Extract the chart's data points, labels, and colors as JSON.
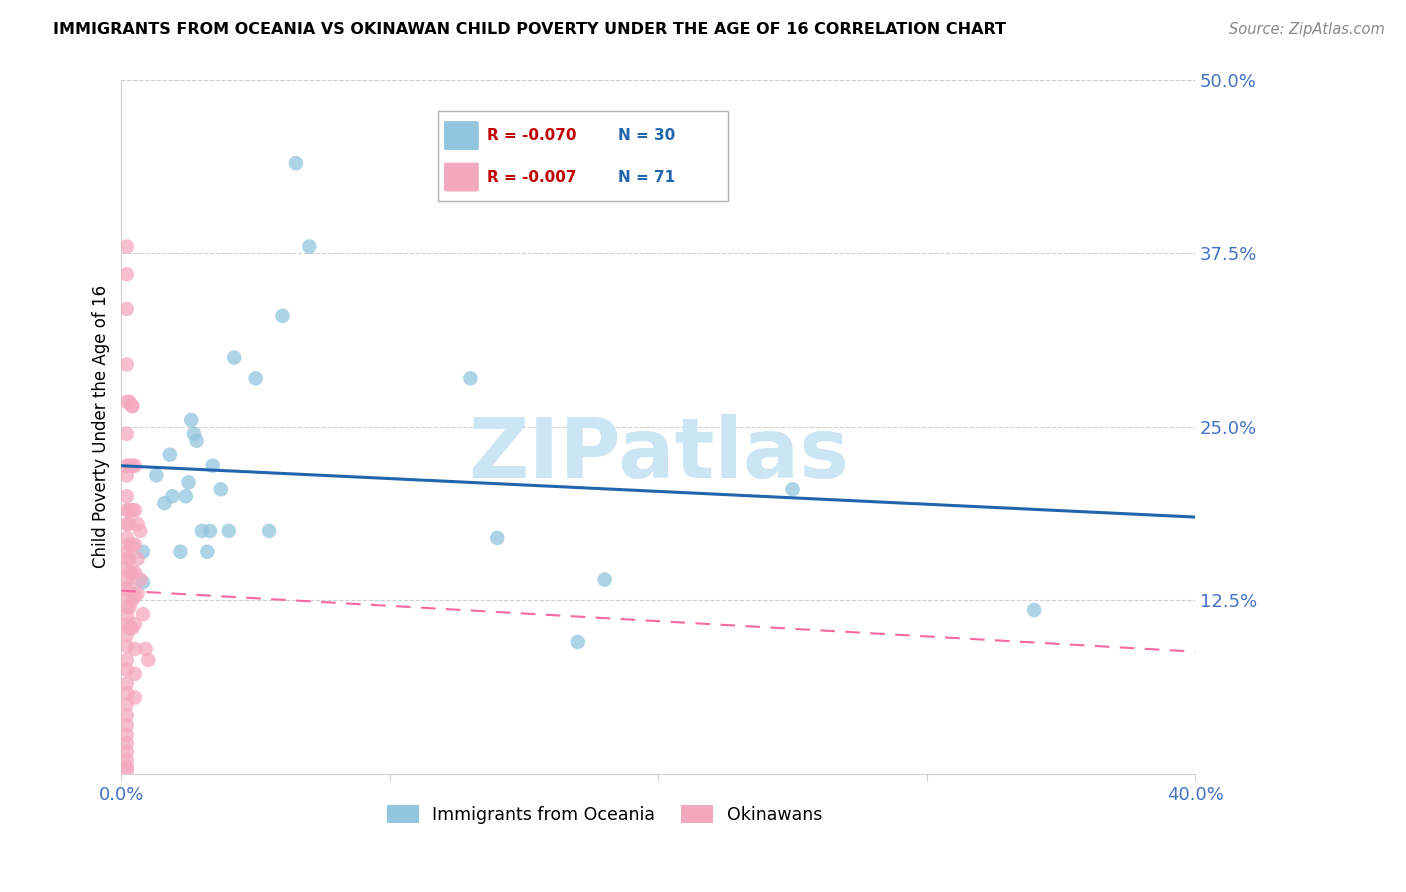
{
  "title": "IMMIGRANTS FROM OCEANIA VS OKINAWAN CHILD POVERTY UNDER THE AGE OF 16 CORRELATION CHART",
  "source": "Source: ZipAtlas.com",
  "ylabel": "Child Poverty Under the Age of 16",
  "xlim": [
    0.0,
    0.4
  ],
  "ylim": [
    0.0,
    0.5
  ],
  "xtick_positions": [
    0.0,
    0.1,
    0.2,
    0.3,
    0.4
  ],
  "xtick_labels": [
    "0.0%",
    "",
    "",
    "",
    "40.0%"
  ],
  "yticks_right": [
    0.5,
    0.375,
    0.25,
    0.125
  ],
  "ytick_labels_right": [
    "50.0%",
    "37.5%",
    "25.0%",
    "12.5%"
  ],
  "blue_color": "#92c5de",
  "pink_color": "#f4a8bf",
  "blue_line_color": "#2166ac",
  "pink_line_color": "#f768a1",
  "watermark_text": "ZIPatlas",
  "watermark_color": "#cce5f5",
  "grid_color": "#d0d0d0",
  "tick_label_color": "#4472c4",
  "legend_r1": "R = -0.070",
  "legend_n1": "N = 30",
  "legend_r2": "R = -0.007",
  "legend_n2": "N = 71",
  "legend_r_color": "#c00000",
  "legend_n_color": "#2166ac",
  "blue_line_start_y": 0.222,
  "blue_line_end_y": 0.185,
  "pink_line_start_y": 0.132,
  "pink_line_end_y": 0.088,
  "oceania_x": [
    0.008,
    0.008,
    0.013,
    0.016,
    0.018,
    0.019,
    0.022,
    0.024,
    0.025,
    0.026,
    0.027,
    0.028,
    0.03,
    0.032,
    0.033,
    0.034,
    0.037,
    0.04,
    0.042,
    0.05,
    0.055,
    0.06,
    0.065,
    0.07,
    0.13,
    0.14,
    0.17,
    0.18,
    0.25,
    0.34
  ],
  "oceania_y": [
    0.138,
    0.16,
    0.215,
    0.195,
    0.23,
    0.2,
    0.16,
    0.2,
    0.21,
    0.255,
    0.245,
    0.24,
    0.175,
    0.16,
    0.175,
    0.222,
    0.205,
    0.175,
    0.3,
    0.285,
    0.175,
    0.33,
    0.44,
    0.38,
    0.285,
    0.17,
    0.095,
    0.14,
    0.205,
    0.118
  ],
  "okinawa_x": [
    0.002,
    0.002,
    0.002,
    0.002,
    0.002,
    0.002,
    0.002,
    0.002,
    0.002,
    0.002,
    0.002,
    0.002,
    0.002,
    0.002,
    0.002,
    0.002,
    0.002,
    0.002,
    0.002,
    0.002,
    0.002,
    0.002,
    0.002,
    0.002,
    0.002,
    0.002,
    0.002,
    0.002,
    0.002,
    0.002,
    0.002,
    0.002,
    0.002,
    0.002,
    0.002,
    0.002,
    0.003,
    0.003,
    0.003,
    0.003,
    0.003,
    0.003,
    0.003,
    0.003,
    0.003,
    0.003,
    0.004,
    0.004,
    0.004,
    0.004,
    0.004,
    0.004,
    0.004,
    0.004,
    0.005,
    0.005,
    0.005,
    0.005,
    0.005,
    0.005,
    0.005,
    0.005,
    0.005,
    0.006,
    0.006,
    0.006,
    0.007,
    0.007,
    0.008,
    0.009,
    0.01
  ],
  "okinawa_y": [
    0.38,
    0.36,
    0.335,
    0.295,
    0.268,
    0.245,
    0.222,
    0.215,
    0.2,
    0.19,
    0.18,
    0.17,
    0.16,
    0.155,
    0.148,
    0.14,
    0.133,
    0.128,
    0.12,
    0.114,
    0.108,
    0.1,
    0.092,
    0.082,
    0.075,
    0.065,
    0.058,
    0.05,
    0.042,
    0.035,
    0.028,
    0.022,
    0.016,
    0.01,
    0.005,
    0.002,
    0.268,
    0.222,
    0.19,
    0.18,
    0.165,
    0.155,
    0.145,
    0.135,
    0.12,
    0.105,
    0.265,
    0.222,
    0.19,
    0.165,
    0.145,
    0.125,
    0.105,
    0.265,
    0.222,
    0.19,
    0.165,
    0.145,
    0.128,
    0.108,
    0.09,
    0.072,
    0.055,
    0.18,
    0.155,
    0.13,
    0.175,
    0.14,
    0.115,
    0.09,
    0.082
  ]
}
